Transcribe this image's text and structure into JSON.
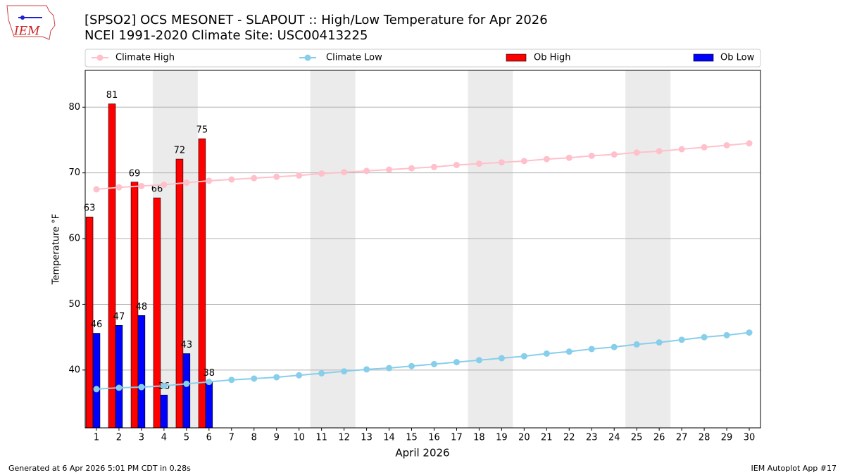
{
  "chart_data": {
    "type": "bar_line",
    "title": "[SPSO2] OCS MESONET - SLAPOUT :: High/Low Temperature for Apr 2026",
    "subtitle": "NCEI 1991-2020 Climate Site: USC00413225",
    "ylabel": "Temperature °F",
    "xlabel": "April 2026",
    "logo_text": "IEM",
    "footer_left": "Generated at 6 Apr 2026 5:01 PM CDT in 0.28s",
    "footer_right": "IEM Autoplot App #17",
    "x": [
      1,
      2,
      3,
      4,
      5,
      6,
      7,
      8,
      9,
      10,
      11,
      12,
      13,
      14,
      15,
      16,
      17,
      18,
      19,
      20,
      21,
      22,
      23,
      24,
      25,
      26,
      27,
      28,
      29,
      30
    ],
    "xlim": [
      0.5,
      30.5
    ],
    "xticks": [
      1,
      2,
      3,
      4,
      5,
      6,
      7,
      8,
      9,
      10,
      11,
      12,
      13,
      14,
      15,
      16,
      17,
      18,
      19,
      20,
      21,
      22,
      23,
      24,
      25,
      26,
      27,
      28,
      29,
      30
    ],
    "ylim": [
      31.2,
      85.6
    ],
    "yticks": [
      40,
      50,
      60,
      70,
      80
    ],
    "grid": true,
    "shaded_spans": [
      [
        3.5,
        5.5
      ],
      [
        10.5,
        12.5
      ],
      [
        17.5,
        19.5
      ],
      [
        24.5,
        26.5
      ]
    ],
    "series": [
      {
        "name": "Climate High",
        "kind": "line",
        "color": "#ffc0cb",
        "values": [
          67.5,
          67.8,
          68.0,
          68.2,
          68.5,
          68.8,
          69.0,
          69.2,
          69.4,
          69.6,
          69.9,
          70.1,
          70.3,
          70.5,
          70.7,
          70.9,
          71.2,
          71.4,
          71.6,
          71.8,
          72.1,
          72.3,
          72.6,
          72.8,
          73.1,
          73.3,
          73.6,
          73.9,
          74.2,
          74.5
        ]
      },
      {
        "name": "Climate Low",
        "kind": "line",
        "color": "#87ceeb",
        "values": [
          37.1,
          37.3,
          37.4,
          37.6,
          37.9,
          38.2,
          38.5,
          38.7,
          38.9,
          39.2,
          39.5,
          39.8,
          40.1,
          40.3,
          40.6,
          40.9,
          41.2,
          41.5,
          41.8,
          42.1,
          42.5,
          42.8,
          43.2,
          43.5,
          43.9,
          44.2,
          44.6,
          45.0,
          45.3,
          45.7
        ]
      },
      {
        "name": "Ob High",
        "kind": "bar",
        "color": "#ff0000",
        "values": [
          63.3,
          80.5,
          68.6,
          66.2,
          72.1,
          75.2,
          null,
          null,
          null,
          null,
          null,
          null,
          null,
          null,
          null,
          null,
          null,
          null,
          null,
          null,
          null,
          null,
          null,
          null,
          null,
          null,
          null,
          null,
          null,
          null
        ],
        "value_labels": [
          "63",
          "81",
          "69",
          "66",
          "72",
          "75",
          null,
          null,
          null,
          null,
          null,
          null,
          null,
          null,
          null,
          null,
          null,
          null,
          null,
          null,
          null,
          null,
          null,
          null,
          null,
          null,
          null,
          null,
          null,
          null
        ]
      },
      {
        "name": "Ob Low",
        "kind": "bar",
        "color": "#0000ff",
        "values": [
          45.6,
          46.8,
          48.3,
          36.2,
          42.5,
          38.2,
          null,
          null,
          null,
          null,
          null,
          null,
          null,
          null,
          null,
          null,
          null,
          null,
          null,
          null,
          null,
          null,
          null,
          null,
          null,
          null,
          null,
          null,
          null,
          null
        ],
        "value_labels": [
          "46",
          "47",
          "48",
          "36",
          "43",
          "38",
          null,
          null,
          null,
          null,
          null,
          null,
          null,
          null,
          null,
          null,
          null,
          null,
          null,
          null,
          null,
          null,
          null,
          null,
          null,
          null,
          null,
          null,
          null,
          null
        ]
      }
    ]
  }
}
